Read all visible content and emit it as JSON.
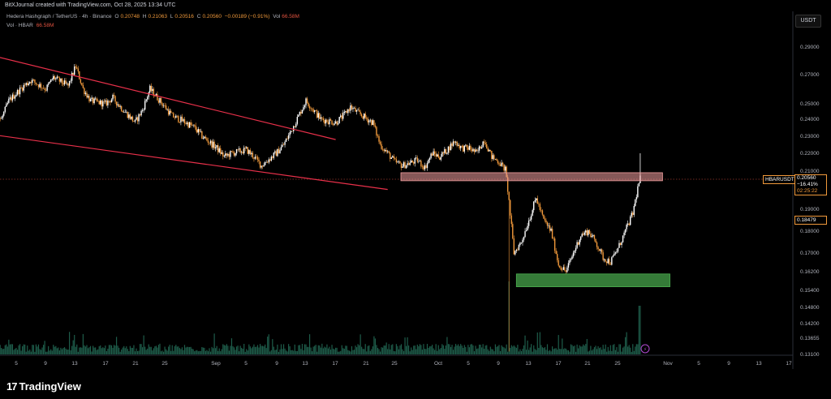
{
  "header": {
    "text": "BitXJournal created with TradingView.com, Oct 28, 2025 13:34 UTC"
  },
  "legend": {
    "symbol": "Hedera Hashgraph / TetherUS · 4h · Binance",
    "o_label": "O",
    "o_value": "0.20748",
    "h_label": "H",
    "h_value": "0.21063",
    "l_label": "L",
    "l_value": "0.20516",
    "c_label": "C",
    "c_value": "0.20560",
    "change": "−0.00189 (−0.91%)",
    "vol_label": "Vol",
    "vol_value": "66.58M",
    "vol_series_label": "Vol · HBAR",
    "vol_series_value": "66.58M"
  },
  "toolbar": {
    "currency_button": "USDT"
  },
  "price_tags": {
    "symbol": "HBARUSDT",
    "last_price": "0.20560",
    "change_pct": "−16.41%",
    "countdown": "02:25:22",
    "secondary_price": "0.18479"
  },
  "footer": {
    "logo_mark": "17",
    "logo_text": "TradingView"
  },
  "colors": {
    "background": "#000000",
    "candle_up": "#ffffff",
    "candle_down": "#f0993b",
    "channel": "#e8304a",
    "resistance_zone": "#f4a0a0",
    "support_zone": "#4caf50",
    "volume": "#1e5c4a"
  },
  "chart_data": {
    "type": "candlestick",
    "y_scale": "log",
    "ylim": [
      0.131,
      0.31
    ],
    "y_ticks": [
      "0.29000",
      "0.27000",
      "0.25000",
      "0.24000",
      "0.23000",
      "0.22000",
      "0.21000",
      "0.20000",
      "0.19000",
      "0.18000",
      "0.17000",
      "0.16200",
      "0.15400",
      "0.14800",
      "0.14200",
      "0.13655",
      "0.13100"
    ],
    "x_ticks": [
      "5",
      "9",
      "13",
      "17",
      "21",
      "25",
      "Sep",
      "5",
      "9",
      "13",
      "17",
      "21",
      "25",
      "Oct",
      "5",
      "9",
      "13",
      "17",
      "21",
      "25",
      "Nov",
      "5",
      "9",
      "13",
      "17"
    ],
    "close_path": [
      [
        "Jul 30",
        0.25
      ],
      [
        "Aug 1",
        0.245
      ],
      [
        "Aug 3",
        0.24
      ],
      [
        "Aug 4",
        0.252
      ],
      [
        "Aug 6",
        0.262
      ],
      [
        "Aug 7",
        0.266
      ],
      [
        "Aug 9",
        0.26
      ],
      [
        "Aug 10",
        0.268
      ],
      [
        "Aug 12",
        0.262
      ],
      [
        "Aug 13",
        0.276
      ],
      [
        "Aug 14",
        0.26
      ],
      [
        "Aug 15",
        0.252
      ],
      [
        "Aug 17",
        0.25
      ],
      [
        "Aug 18",
        0.254
      ],
      [
        "Aug 19",
        0.248
      ],
      [
        "Aug 21",
        0.238
      ],
      [
        "Aug 22",
        0.246
      ],
      [
        "Aug 23",
        0.26
      ],
      [
        "Aug 24",
        0.254
      ],
      [
        "Aug 26",
        0.242
      ],
      [
        "Aug 27",
        0.24
      ],
      [
        "Aug 29",
        0.235
      ],
      [
        "Aug 30",
        0.23
      ],
      [
        "Sep 1",
        0.223
      ],
      [
        "Sep 2",
        0.218
      ],
      [
        "Sep 3",
        0.22
      ],
      [
        "Sep 5",
        0.222
      ],
      [
        "Sep 6",
        0.218
      ],
      [
        "Sep 7",
        0.213
      ],
      [
        "Sep 9",
        0.22
      ],
      [
        "Sep 10",
        0.225
      ],
      [
        "Sep 11",
        0.233
      ],
      [
        "Sep 12",
        0.242
      ],
      [
        "Sep 13",
        0.252
      ],
      [
        "Sep 14",
        0.246
      ],
      [
        "Sep 15",
        0.24
      ],
      [
        "Sep 17",
        0.238
      ],
      [
        "Sep 18",
        0.242
      ],
      [
        "Sep 19",
        0.248
      ],
      [
        "Sep 20",
        0.244
      ],
      [
        "Sep 22",
        0.238
      ],
      [
        "Sep 23",
        0.225
      ],
      [
        "Sep 24",
        0.22
      ],
      [
        "Sep 25",
        0.215
      ],
      [
        "Sep 26",
        0.213
      ],
      [
        "Sep 28",
        0.216
      ],
      [
        "Sep 29",
        0.212
      ],
      [
        "Sep 30",
        0.22
      ],
      [
        "Oct 1",
        0.218
      ],
      [
        "Oct 2",
        0.222
      ],
      [
        "Oct 3",
        0.227
      ],
      [
        "Oct 4",
        0.223
      ],
      [
        "Oct 5",
        0.223
      ],
      [
        "Oct 6",
        0.22
      ],
      [
        "Oct 7",
        0.228
      ],
      [
        "Oct 8",
        0.218
      ],
      [
        "Oct 9",
        0.215
      ],
      [
        "Oct 10",
        0.21
      ],
      [
        "Oct 10",
        0.205
      ],
      [
        "Oct 11",
        0.17
      ],
      [
        "Oct 12",
        0.175
      ],
      [
        "Oct 13",
        0.185
      ],
      [
        "Oct 14",
        0.195
      ],
      [
        "Oct 15",
        0.185
      ],
      [
        "Oct 16",
        0.18
      ],
      [
        "Oct 17",
        0.165
      ],
      [
        "Oct 18",
        0.162
      ],
      [
        "Oct 19",
        0.17
      ],
      [
        "Oct 20",
        0.178
      ],
      [
        "Oct 21",
        0.18
      ],
      [
        "Oct 22",
        0.175
      ],
      [
        "Oct 23",
        0.168
      ],
      [
        "Oct 24",
        0.166
      ],
      [
        "Oct 25",
        0.172
      ],
      [
        "Oct 26",
        0.18
      ],
      [
        "Oct 27",
        0.188
      ],
      [
        "Oct 28",
        0.2056
      ]
    ],
    "annotations": {
      "descending_channel": {
        "upper": [
          [
            "Jul 31",
            0.286
          ],
          [
            "Sep 17",
            0.228
          ]
        ],
        "lower": [
          [
            "Jul 31",
            0.232
          ],
          [
            "Sep 24",
            0.199
          ]
        ]
      },
      "resistance_zone": {
        "from": "Sep 26",
        "to": "Oct 31",
        "y": [
          0.204,
          0.209
        ]
      },
      "support_zone": {
        "from": "Oct 11",
        "to": "Nov 1",
        "y": [
          0.1555,
          0.161
        ]
      }
    }
  }
}
